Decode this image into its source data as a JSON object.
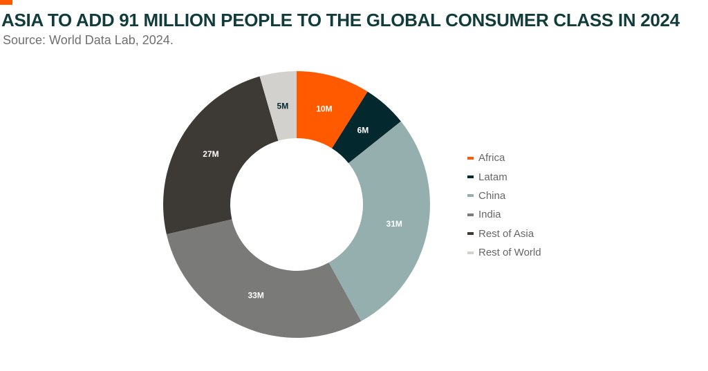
{
  "header": {
    "title": "ASIA TO ADD 91 MILLION PEOPLE TO THE GLOBAL CONSUMER CLASS IN 2024",
    "subtitle": "Source: World Data Lab, 2024.",
    "title_color": "#123c3c",
    "accent_color": "#ff5a00"
  },
  "chart_data": {
    "type": "pie",
    "title": "ASIA TO ADD 91 MILLION PEOPLE TO THE GLOBAL CONSUMER CLASS IN 2024",
    "subtitle": "Source: World Data Lab, 2024.",
    "donut": true,
    "unit": "M",
    "categories": [
      "Africa",
      "Latam",
      "China",
      "India",
      "Rest of Asia",
      "Rest of World"
    ],
    "values": [
      10,
      6,
      31,
      33,
      27,
      5
    ],
    "labels": [
      "10M",
      "6M",
      "31M",
      "33M",
      "27M",
      "5M"
    ],
    "colors": [
      "#ff5a00",
      "#03282e",
      "#95afaf",
      "#7a7a78",
      "#3d3935",
      "#d3d1ce"
    ],
    "label_colors": [
      "#ffffff",
      "#ffffff",
      "#ffffff",
      "#ffffff",
      "#ffffff",
      "#03282e"
    ],
    "legend_position": "right"
  }
}
